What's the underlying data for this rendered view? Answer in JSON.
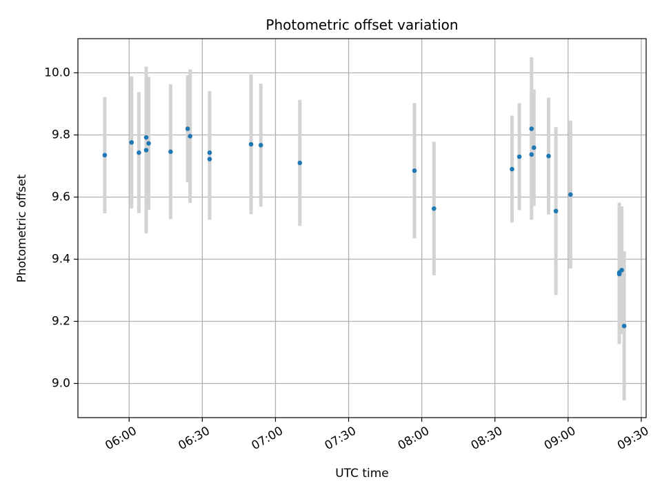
{
  "chart_data": {
    "type": "scatter",
    "title": "Photometric offset variation",
    "xlabel": "UTC time",
    "ylabel": "Photometric offset",
    "x_ticks": [
      "06:00",
      "06:30",
      "07:00",
      "07:30",
      "08:00",
      "08:30",
      "09:00",
      "09:30"
    ],
    "y_ticks": [
      "9.0",
      "9.2",
      "9.4",
      "9.6",
      "9.8",
      "10.0"
    ],
    "xlim": [
      "05:39",
      "09:32"
    ],
    "ylim": [
      8.89,
      10.11
    ],
    "grid": true,
    "legend": "none",
    "colors": {
      "point": "#1f77b4",
      "errorbar": "#d3d3d3",
      "grid": "#b0b0b0"
    },
    "series": [
      {
        "points": [
          {
            "x": "05:50",
            "y": 9.735,
            "err": 0.187
          },
          {
            "x": "06:01",
            "y": 9.776,
            "err": 0.213
          },
          {
            "x": "06:04",
            "y": 9.743,
            "err": 0.195
          },
          {
            "x": "06:07",
            "y": 9.792,
            "err": 0.228
          },
          {
            "x": "06:07",
            "y": 9.751,
            "err": 0.268
          },
          {
            "x": "06:08",
            "y": 9.773,
            "err": 0.214
          },
          {
            "x": "06:17",
            "y": 9.746,
            "err": 0.217
          },
          {
            "x": "06:24",
            "y": 9.82,
            "err": 0.172
          },
          {
            "x": "06:25",
            "y": 9.796,
            "err": 0.215
          },
          {
            "x": "06:33",
            "y": 9.722,
            "err": 0.195
          },
          {
            "x": "06:33",
            "y": 9.743,
            "err": 0.198
          },
          {
            "x": "06:50",
            "y": 9.77,
            "err": 0.225
          },
          {
            "x": "06:54",
            "y": 9.767,
            "err": 0.198
          },
          {
            "x": "07:10",
            "y": 9.71,
            "err": 0.203
          },
          {
            "x": "07:57",
            "y": 9.685,
            "err": 0.218
          },
          {
            "x": "08:05",
            "y": 9.563,
            "err": 0.215
          },
          {
            "x": "08:37",
            "y": 9.69,
            "err": 0.172
          },
          {
            "x": "08:40",
            "y": 9.73,
            "err": 0.172
          },
          {
            "x": "08:45",
            "y": 9.737,
            "err": 0.21
          },
          {
            "x": "08:45",
            "y": 9.82,
            "err": 0.23
          },
          {
            "x": "08:46",
            "y": 9.759,
            "err": 0.188
          },
          {
            "x": "08:52",
            "y": 9.732,
            "err": 0.188
          },
          {
            "x": "08:55",
            "y": 9.555,
            "err": 0.27
          },
          {
            "x": "09:01",
            "y": 9.608,
            "err": 0.238
          },
          {
            "x": "09:21",
            "y": 9.352,
            "err": 0.225
          },
          {
            "x": "09:21",
            "y": 9.357,
            "err": 0.225
          },
          {
            "x": "09:22",
            "y": 9.365,
            "err": 0.205
          },
          {
            "x": "09:23",
            "y": 9.185,
            "err": 0.24
          }
        ]
      }
    ]
  }
}
